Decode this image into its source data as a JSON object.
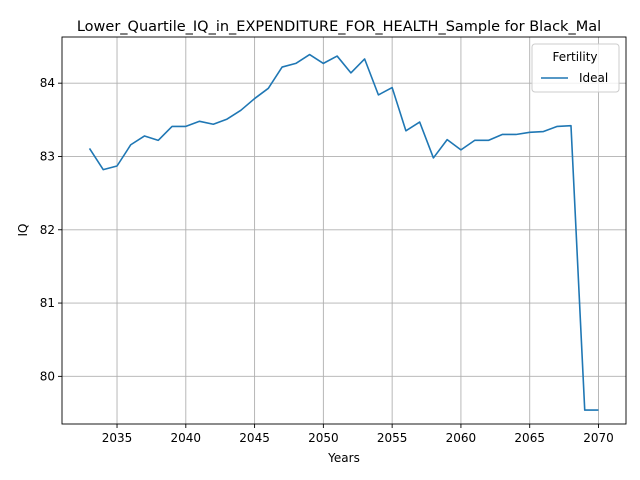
{
  "chart_data": {
    "type": "line",
    "title": "Lower_Quartile_IQ_in_EXPENDITURE_FOR_HEALTH_Sample for Black_Mal",
    "xlabel": "Years",
    "ylabel": "IQ",
    "xlim": [
      2031,
      2072
    ],
    "ylim": [
      79.35,
      84.63
    ],
    "xticks": [
      2035,
      2040,
      2045,
      2050,
      2055,
      2060,
      2065,
      2070
    ],
    "yticks": [
      80,
      81,
      82,
      83,
      84
    ],
    "grid": true,
    "legend": {
      "title": "Fertility",
      "position": "top-right"
    },
    "series": [
      {
        "name": "Ideal",
        "color": "#1f77b4",
        "x": [
          2033,
          2034,
          2035,
          2036,
          2037,
          2038,
          2039,
          2040,
          2041,
          2042,
          2043,
          2044,
          2045,
          2046,
          2047,
          2048,
          2049,
          2050,
          2051,
          2052,
          2053,
          2054,
          2055,
          2056,
          2057,
          2058,
          2059,
          2060,
          2061,
          2062,
          2063,
          2064,
          2065,
          2066,
          2067,
          2068,
          2069,
          2070
        ],
        "y": [
          83.11,
          82.82,
          82.87,
          83.16,
          83.28,
          83.22,
          83.41,
          83.41,
          83.48,
          83.44,
          83.51,
          83.63,
          83.79,
          83.93,
          84.22,
          84.27,
          84.39,
          84.27,
          84.37,
          84.14,
          84.33,
          83.84,
          83.94,
          83.35,
          83.47,
          82.98,
          83.23,
          83.09,
          83.22,
          83.22,
          83.3,
          83.3,
          83.33,
          83.34,
          83.41,
          83.42,
          79.54,
          79.54
        ]
      }
    ]
  }
}
